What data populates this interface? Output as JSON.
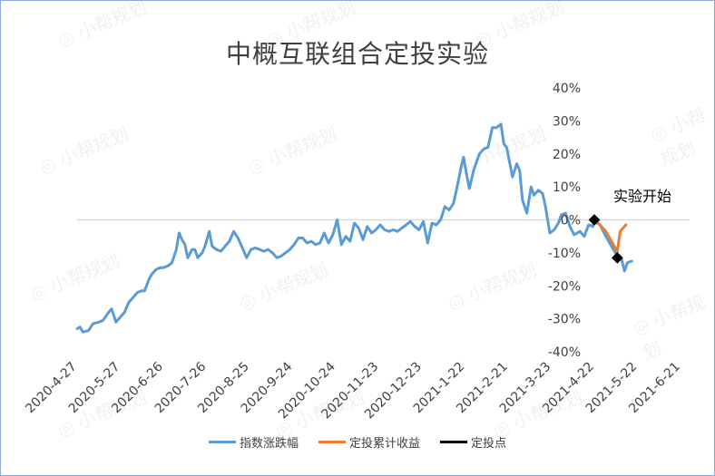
{
  "title": "中概互联组合定投实验",
  "annotation": "实验开始",
  "watermark": "小帮规划",
  "colors": {
    "index": "#5b9bd5",
    "cumulative": "#ed7d31",
    "points": "#000000",
    "zero_line": "#d9d9d9"
  },
  "chart_data": {
    "type": "line",
    "title": "中概互联组合定投实验",
    "x_ticks": [
      "2020-4-27",
      "2020-5-27",
      "2020-6-26",
      "2020-7-26",
      "2020-8-25",
      "2020-9-24",
      "2020-10-24",
      "2020-11-23",
      "2020-12-23",
      "2021-1-22",
      "2021-2-21",
      "2021-3-23",
      "2021-4-22",
      "2021-5-22",
      "2021-6-21"
    ],
    "y_ticks": [
      "-40%",
      "-30%",
      "-20%",
      "-10%",
      "0%",
      "10%",
      "20%",
      "30%",
      "40%"
    ],
    "ylim": [
      -40,
      40
    ],
    "y_axis_position": "right",
    "legend_position": "bottom",
    "grid": false,
    "series": [
      {
        "name": "指数涨跌幅",
        "color": "#5b9bd5",
        "points": [
          [
            "2020-04-27",
            -33
          ],
          [
            "2020-04-29",
            -32.5
          ],
          [
            "2020-05-01",
            -34
          ],
          [
            "2020-05-05",
            -33.5
          ],
          [
            "2020-05-08",
            -31.5
          ],
          [
            "2020-05-12",
            -31
          ],
          [
            "2020-05-15",
            -30.5
          ],
          [
            "2020-05-19",
            -28
          ],
          [
            "2020-05-21",
            -27
          ],
          [
            "2020-05-24",
            -31
          ],
          [
            "2020-05-27",
            -29.5
          ],
          [
            "2020-05-30",
            -28
          ],
          [
            "2020-06-02",
            -25
          ],
          [
            "2020-06-05",
            -23.5
          ],
          [
            "2020-06-08",
            -22
          ],
          [
            "2020-06-11",
            -21.5
          ],
          [
            "2020-06-13",
            -21.5
          ],
          [
            "2020-06-16",
            -18
          ],
          [
            "2020-06-18",
            -16.5
          ],
          [
            "2020-06-21",
            -15
          ],
          [
            "2020-06-24",
            -14.5
          ],
          [
            "2020-06-26",
            -14.5
          ],
          [
            "2020-06-29",
            -14
          ],
          [
            "2020-07-02",
            -13
          ],
          [
            "2020-07-05",
            -9
          ],
          [
            "2020-07-07",
            -4
          ],
          [
            "2020-07-09",
            -6
          ],
          [
            "2020-07-11",
            -7.5
          ],
          [
            "2020-07-13",
            -11.5
          ],
          [
            "2020-07-16",
            -9
          ],
          [
            "2020-07-18",
            -9
          ],
          [
            "2020-07-20",
            -11.5
          ],
          [
            "2020-07-23",
            -10
          ],
          [
            "2020-07-25",
            -8
          ],
          [
            "2020-07-28",
            -3.5
          ],
          [
            "2020-07-30",
            -8
          ],
          [
            "2020-08-02",
            -9
          ],
          [
            "2020-08-05",
            -9.5
          ],
          [
            "2020-08-08",
            -8
          ],
          [
            "2020-08-11",
            -6.5
          ],
          [
            "2020-08-14",
            -3.5
          ],
          [
            "2020-08-17",
            -5.5
          ],
          [
            "2020-08-20",
            -8.5
          ],
          [
            "2020-08-23",
            -11.5
          ],
          [
            "2020-08-26",
            -9
          ],
          [
            "2020-08-29",
            -8.5
          ],
          [
            "2020-09-01",
            -9
          ],
          [
            "2020-09-04",
            -9.5
          ],
          [
            "2020-09-07",
            -9
          ],
          [
            "2020-09-10",
            -10
          ],
          [
            "2020-09-13",
            -11.5
          ],
          [
            "2020-09-16",
            -11
          ],
          [
            "2020-09-19",
            -10
          ],
          [
            "2020-09-22",
            -9
          ],
          [
            "2020-09-25",
            -7.5
          ],
          [
            "2020-09-28",
            -5.5
          ],
          [
            "2020-10-01",
            -5.5
          ],
          [
            "2020-10-04",
            -7
          ],
          [
            "2020-10-07",
            -6.5
          ],
          [
            "2020-10-10",
            -7.5
          ],
          [
            "2020-10-13",
            -7
          ],
          [
            "2020-10-16",
            -4
          ],
          [
            "2020-10-19",
            -7
          ],
          [
            "2020-10-22",
            -4.5
          ],
          [
            "2020-10-25",
            0
          ],
          [
            "2020-10-28",
            -7.5
          ],
          [
            "2020-10-31",
            -5
          ],
          [
            "2020-11-03",
            -6.5
          ],
          [
            "2020-11-06",
            -1
          ],
          [
            "2020-11-09",
            -2.5
          ],
          [
            "2020-11-12",
            -6
          ],
          [
            "2020-11-15",
            -2
          ],
          [
            "2020-11-18",
            -4
          ],
          [
            "2020-11-21",
            -3
          ],
          [
            "2020-11-24",
            -1.5
          ],
          [
            "2020-11-27",
            -3
          ],
          [
            "2020-11-30",
            -3.5
          ],
          [
            "2020-12-03",
            -3
          ],
          [
            "2020-12-06",
            -3.5
          ],
          [
            "2020-12-09",
            -2.5
          ],
          [
            "2020-12-12",
            -1.5
          ],
          [
            "2020-12-15",
            -0.5
          ],
          [
            "2020-12-18",
            -2
          ],
          [
            "2020-12-21",
            -3
          ],
          [
            "2020-12-24",
            -0.5
          ],
          [
            "2020-12-27",
            -7
          ],
          [
            "2020-12-30",
            -1
          ],
          [
            "2021-01-02",
            -1.5
          ],
          [
            "2021-01-05",
            0
          ],
          [
            "2021-01-08",
            4
          ],
          [
            "2021-01-11",
            3
          ],
          [
            "2021-01-14",
            5
          ],
          [
            "2021-01-17",
            11
          ],
          [
            "2021-01-19",
            15.5
          ],
          [
            "2021-01-21",
            19
          ],
          [
            "2021-01-23",
            14
          ],
          [
            "2021-01-25",
            9.5
          ],
          [
            "2021-01-28",
            15
          ],
          [
            "2021-02-01",
            20
          ],
          [
            "2021-02-04",
            21.5
          ],
          [
            "2021-02-07",
            22
          ],
          [
            "2021-02-10",
            28
          ],
          [
            "2021-02-13",
            28
          ],
          [
            "2021-02-16",
            29
          ],
          [
            "2021-02-18",
            23
          ],
          [
            "2021-02-20",
            22
          ],
          [
            "2021-02-22",
            17.5
          ],
          [
            "2021-02-24",
            13
          ],
          [
            "2021-02-27",
            17
          ],
          [
            "2021-03-01",
            15
          ],
          [
            "2021-03-03",
            6
          ],
          [
            "2021-03-06",
            2
          ],
          [
            "2021-03-09",
            10
          ],
          [
            "2021-03-11",
            7.5
          ],
          [
            "2021-03-14",
            9
          ],
          [
            "2021-03-17",
            8
          ],
          [
            "2021-03-19",
            4
          ],
          [
            "2021-03-22",
            -4
          ],
          [
            "2021-03-25",
            -3
          ],
          [
            "2021-03-28",
            -1
          ],
          [
            "2021-03-30",
            1.5
          ],
          [
            "2021-04-02",
            2
          ],
          [
            "2021-04-05",
            -2
          ],
          [
            "2021-04-08",
            -4.5
          ],
          [
            "2021-04-12",
            -3.5
          ],
          [
            "2021-04-15",
            -5
          ],
          [
            "2021-04-18",
            -1.5
          ],
          [
            "2021-04-21",
            -2
          ],
          [
            "2021-04-22",
            -0.5
          ],
          [
            "2021-04-26",
            -1.5
          ],
          [
            "2021-04-30",
            -5
          ],
          [
            "2021-05-04",
            -8
          ],
          [
            "2021-05-08",
            -11
          ],
          [
            "2021-05-11",
            -12
          ],
          [
            "2021-05-13",
            -15.5
          ],
          [
            "2021-05-15",
            -13
          ],
          [
            "2021-05-18",
            -12.5
          ]
        ]
      },
      {
        "name": "定投累计收益",
        "color": "#ed7d31",
        "points": [
          [
            "2021-04-22",
            0
          ],
          [
            "2021-04-26",
            -1.5
          ],
          [
            "2021-04-30",
            -3.5
          ],
          [
            "2021-05-04",
            -6.5
          ],
          [
            "2021-05-08",
            -9.5
          ],
          [
            "2021-05-10",
            -3.5
          ],
          [
            "2021-05-14",
            -1.5
          ]
        ]
      },
      {
        "name": "定投点",
        "color": "#000000",
        "points": [
          [
            "2021-04-22",
            0
          ],
          [
            "2021-05-08",
            -11.5
          ]
        ]
      }
    ]
  },
  "legend": [
    {
      "label": "指数涨跌幅",
      "color": "#5b9bd5"
    },
    {
      "label": "定投累计收益",
      "color": "#ed7d31"
    },
    {
      "label": "定投点",
      "color": "#000000"
    }
  ]
}
